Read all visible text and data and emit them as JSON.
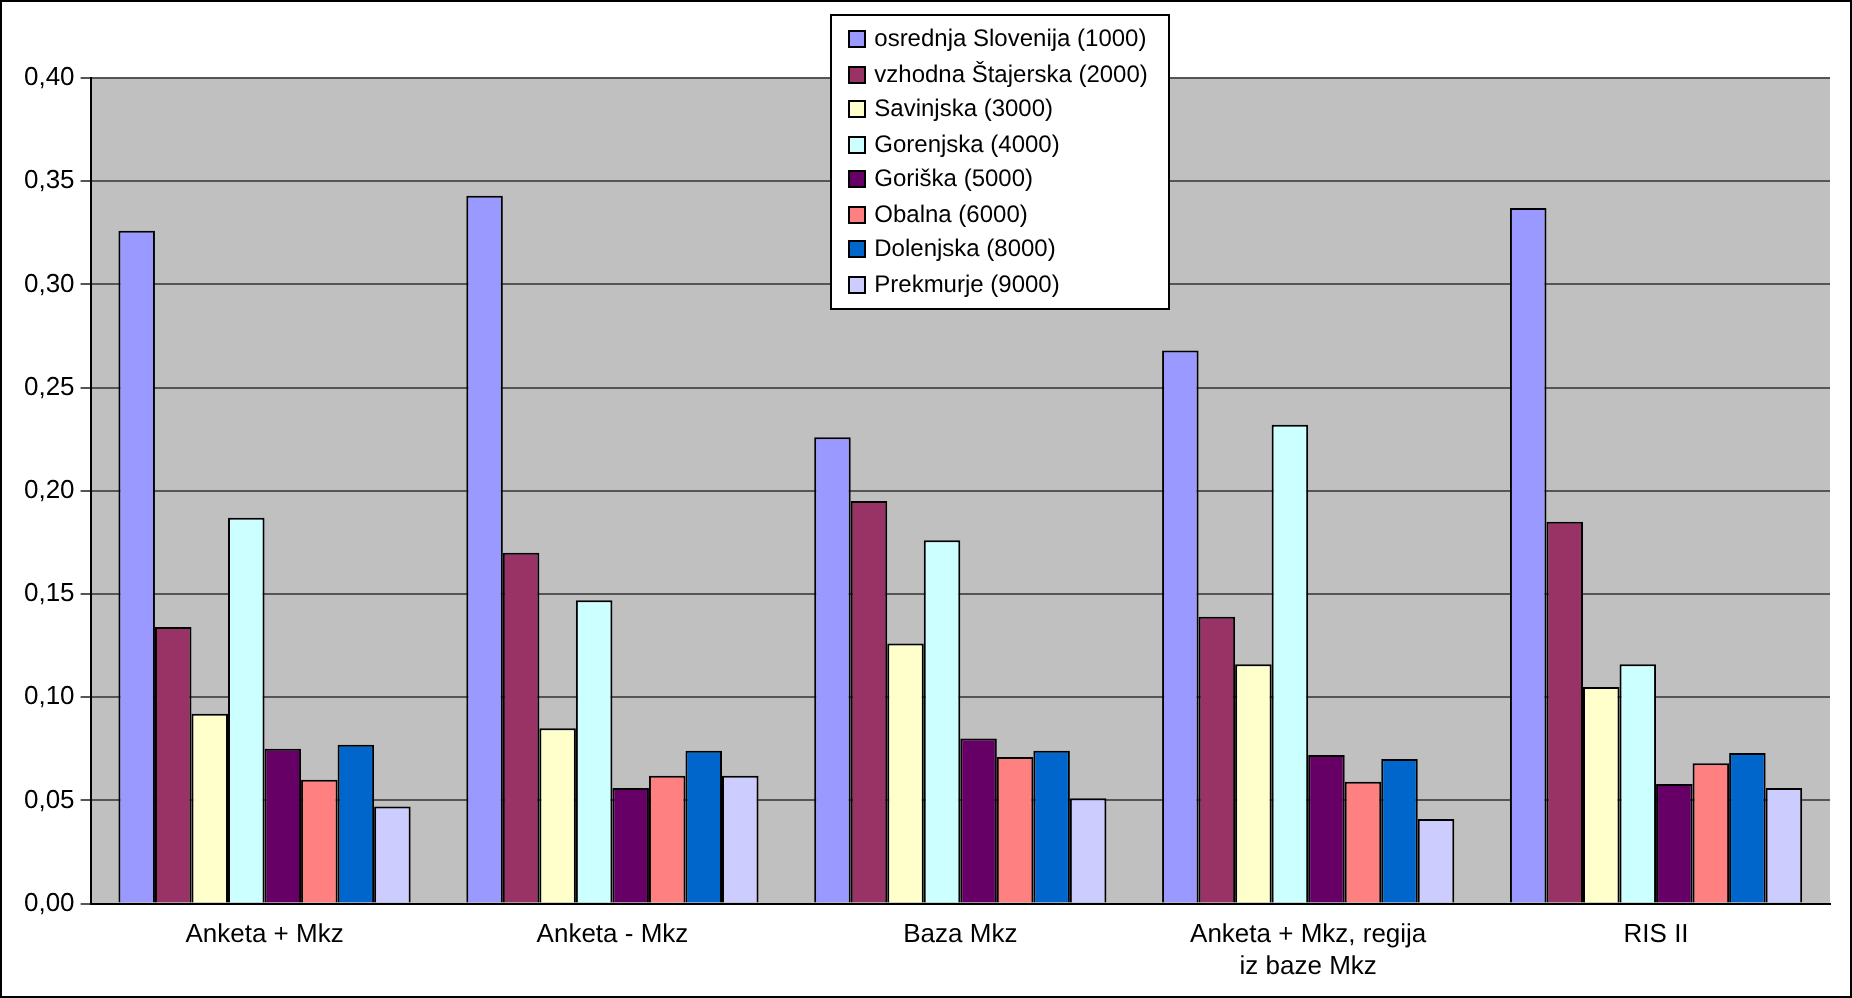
{
  "chart_data": {
    "type": "bar",
    "categories": [
      "Anketa + Mkz",
      "Anketa - Mkz",
      "Baza Mkz",
      "Anketa + Mkz, regija iz baze Mkz",
      "RIS II"
    ],
    "series": [
      {
        "name": "osrednja Slovenija (1000)",
        "color": "#9999ff",
        "values": [
          0.326,
          0.343,
          0.226,
          0.268,
          0.337
        ]
      },
      {
        "name": "vzhodna Štajerska (2000)",
        "color": "#993366",
        "values": [
          0.134,
          0.17,
          0.195,
          0.139,
          0.185
        ]
      },
      {
        "name": "Savinjska (3000)",
        "color": "#ffffcc",
        "values": [
          0.092,
          0.085,
          0.126,
          0.116,
          0.105
        ]
      },
      {
        "name": "Gorenjska (4000)",
        "color": "#ccffff",
        "values": [
          0.187,
          0.147,
          0.176,
          0.232,
          0.116
        ]
      },
      {
        "name": "Goriška (5000)",
        "color": "#660066",
        "values": [
          0.075,
          0.056,
          0.08,
          0.072,
          0.058
        ]
      },
      {
        "name": "Obalna (6000)",
        "color": "#ff8080",
        "values": [
          0.06,
          0.062,
          0.071,
          0.059,
          0.068
        ]
      },
      {
        "name": "Dolenjska (8000)",
        "color": "#0066cc",
        "values": [
          0.077,
          0.074,
          0.074,
          0.07,
          0.073
        ]
      },
      {
        "name": "Prekmurje (9000)",
        "color": "#ccccff",
        "values": [
          0.047,
          0.062,
          0.051,
          0.041,
          0.056
        ]
      }
    ],
    "ylim": [
      0,
      0.4
    ],
    "yticks": [
      {
        "value": 0,
        "label": "0,00"
      },
      {
        "value": 0.05,
        "label": "0,05"
      },
      {
        "value": 0.1,
        "label": "0,10"
      },
      {
        "value": 0.15,
        "label": "0,15"
      },
      {
        "value": 0.2,
        "label": "0,20"
      },
      {
        "value": 0.25,
        "label": "0,25"
      },
      {
        "value": 0.3,
        "label": "0,30"
      },
      {
        "value": 0.35,
        "label": "0,35"
      },
      {
        "value": 0.4,
        "label": "0,40"
      }
    ],
    "grid": "y",
    "legend": "top"
  }
}
